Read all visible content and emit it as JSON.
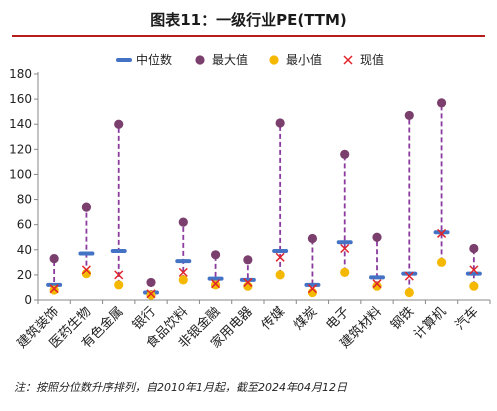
{
  "title": "图表11：一级行业PE(TTM)",
  "note": "注：按照分位数升序排列，自2010年1月起，截至2024年04月12日",
  "chart_data": {
    "type": "scatter",
    "title": "图表11：一级行业PE(TTM)",
    "xlabel": "",
    "ylabel": "",
    "ylim": [
      0,
      180
    ],
    "yticks": [
      0,
      20,
      40,
      60,
      80,
      100,
      120,
      140,
      160,
      180
    ],
    "grid": false,
    "legend_position": "top",
    "categories": [
      "建筑装饰",
      "医药生物",
      "有色金属",
      "银行",
      "食品饮料",
      "非银金融",
      "家用电器",
      "传媒",
      "煤炭",
      "电子",
      "建筑材料",
      "钢铁",
      "计算机",
      "汽车"
    ],
    "series": [
      {
        "name": "中位数",
        "marker": "dash",
        "color": "#4472c4",
        "values": [
          12,
          37,
          39,
          6,
          31,
          17,
          16,
          39,
          12,
          46,
          18,
          21,
          54,
          21
        ]
      },
      {
        "name": "最大值",
        "marker": "circle",
        "color": "#7b3f6e",
        "values": [
          33,
          74,
          140,
          14,
          62,
          36,
          32,
          141,
          49,
          116,
          50,
          147,
          157,
          41
        ]
      },
      {
        "name": "最小值",
        "marker": "circle",
        "color": "#f5b800",
        "values": [
          8,
          21,
          12,
          4,
          16,
          12,
          11,
          20,
          6,
          22,
          11,
          6,
          30,
          11
        ]
      },
      {
        "name": "现值",
        "marker": "x",
        "color": "#e0242b",
        "values": [
          9,
          24,
          20,
          5,
          22,
          13,
          14,
          34,
          9,
          41,
          13,
          19,
          53,
          24
        ]
      }
    ],
    "range_line_color": "#8b3a9e"
  }
}
